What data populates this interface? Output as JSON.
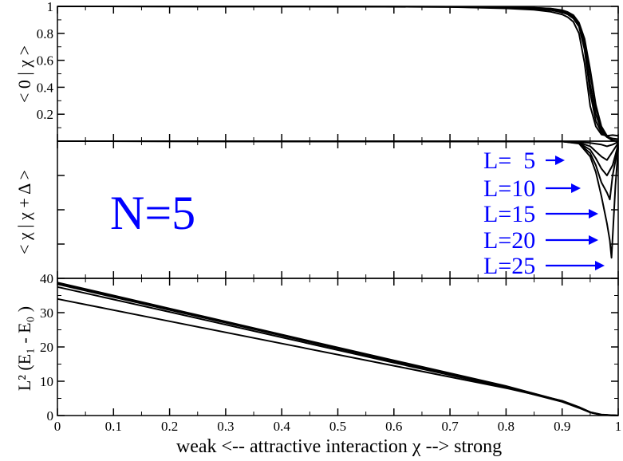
{
  "chart_data": [
    {
      "type": "line",
      "panel": "top",
      "ylabel": "< 0 | χ >",
      "xlim": [
        0,
        1
      ],
      "ylim": [
        0,
        1
      ],
      "yticks": [
        0.2,
        0.4,
        0.6,
        0.8,
        1
      ],
      "ytick_labels": [
        "0.2",
        "0.4",
        "0.6",
        "0.8",
        "1"
      ],
      "series": [
        {
          "x": [
            0,
            0.5,
            0.7,
            0.8,
            0.85,
            0.88,
            0.9,
            0.91,
            0.92,
            0.93,
            0.94,
            0.95,
            0.96,
            0.97,
            0.98,
            0.99,
            1.0
          ],
          "y": [
            1.0,
            0.999,
            0.997,
            0.993,
            0.988,
            0.98,
            0.965,
            0.95,
            0.92,
            0.86,
            0.7,
            0.42,
            0.2,
            0.08,
            0.03,
            0.005,
            0.0
          ]
        },
        {
          "x": [
            0,
            0.5,
            0.7,
            0.8,
            0.85,
            0.88,
            0.9,
            0.91,
            0.92,
            0.93,
            0.94,
            0.95,
            0.96,
            0.97,
            0.98,
            0.99,
            1.0
          ],
          "y": [
            1.0,
            0.999,
            0.997,
            0.994,
            0.99,
            0.983,
            0.97,
            0.955,
            0.93,
            0.87,
            0.74,
            0.5,
            0.25,
            0.1,
            0.035,
            0.006,
            0.0
          ]
        },
        {
          "x": [
            0,
            0.5,
            0.7,
            0.8,
            0.85,
            0.88,
            0.9,
            0.91,
            0.92,
            0.93,
            0.94,
            0.95,
            0.96,
            0.97,
            0.98,
            0.99,
            1.0
          ],
          "y": [
            1.0,
            0.999,
            0.997,
            0.994,
            0.99,
            0.984,
            0.972,
            0.958,
            0.935,
            0.88,
            0.76,
            0.53,
            0.27,
            0.11,
            0.04,
            0.007,
            0.0
          ]
        },
        {
          "x": [
            0,
            0.5,
            0.7,
            0.8,
            0.85,
            0.88,
            0.9,
            0.91,
            0.92,
            0.93,
            0.94,
            0.95,
            0.96,
            0.97,
            0.98,
            0.99,
            1.0
          ],
          "y": [
            1.0,
            0.999,
            0.996,
            0.99,
            0.983,
            0.972,
            0.955,
            0.94,
            0.91,
            0.85,
            0.68,
            0.36,
            0.15,
            0.065,
            0.03,
            0.02,
            0.015
          ]
        },
        {
          "x": [
            0,
            0.5,
            0.7,
            0.8,
            0.85,
            0.88,
            0.9,
            0.91,
            0.92,
            0.93,
            0.94,
            0.95,
            0.96,
            0.97,
            0.98,
            0.99,
            1.0
          ],
          "y": [
            1.0,
            0.999,
            0.995,
            0.985,
            0.975,
            0.96,
            0.94,
            0.92,
            0.885,
            0.8,
            0.58,
            0.26,
            0.11,
            0.05,
            0.04,
            0.045,
            0.04
          ]
        }
      ]
    },
    {
      "type": "line",
      "panel": "middle",
      "ylabel": "< χ | χ + Δ >",
      "xlim": [
        0,
        1
      ],
      "ylim": [
        0.6,
        1
      ],
      "series": [
        {
          "name": "L= 5",
          "x": [
            0,
            0.9,
            0.93,
            0.95,
            0.97,
            0.98,
            0.99,
            1.0
          ],
          "y": [
            1.0,
            0.999,
            0.998,
            0.995,
            0.99,
            0.985,
            0.99,
            0.998
          ]
        },
        {
          "name": "L=10",
          "x": [
            0,
            0.9,
            0.93,
            0.95,
            0.96,
            0.97,
            0.98,
            0.99,
            1.0
          ],
          "y": [
            1.0,
            0.999,
            0.996,
            0.985,
            0.97,
            0.955,
            0.945,
            0.97,
            0.995
          ]
        },
        {
          "name": "L=15",
          "x": [
            0,
            0.9,
            0.93,
            0.95,
            0.96,
            0.97,
            0.98,
            0.99,
            1.0
          ],
          "y": [
            1.0,
            0.999,
            0.995,
            0.975,
            0.95,
            0.92,
            0.9,
            0.93,
            0.99
          ]
        },
        {
          "name": "L=20",
          "x": [
            0,
            0.9,
            0.93,
            0.95,
            0.96,
            0.97,
            0.98,
            0.985,
            0.99,
            1.0
          ],
          "y": [
            1.0,
            0.999,
            0.994,
            0.965,
            0.93,
            0.88,
            0.85,
            0.83,
            0.9,
            0.985
          ]
        },
        {
          "name": "L=25",
          "x": [
            0,
            0.9,
            0.93,
            0.95,
            0.96,
            0.97,
            0.975,
            0.98,
            0.985,
            0.988,
            0.99,
            0.995,
            1.0
          ],
          "y": [
            1.0,
            0.999,
            0.993,
            0.955,
            0.91,
            0.84,
            0.8,
            0.76,
            0.71,
            0.66,
            0.72,
            0.87,
            0.98
          ]
        }
      ],
      "labels": [
        "L=  5",
        "L=10",
        "L=15",
        "L=20",
        "L=25"
      ],
      "annotation": "N=5"
    },
    {
      "type": "line",
      "panel": "bottom",
      "ylabel": "L² (E₁ - E₀ )",
      "xlabel": "weak  <--  attractive interaction χ  -->  strong",
      "xlim": [
        0,
        1
      ],
      "ylim": [
        0,
        40
      ],
      "yticks": [
        0,
        10,
        20,
        30,
        40
      ],
      "ytick_labels": [
        "0",
        "10",
        "20",
        "30",
        "40"
      ],
      "xticks": [
        0,
        0.1,
        0.2,
        0.3,
        0.4,
        0.5,
        0.6,
        0.7,
        0.8,
        0.9,
        1
      ],
      "xtick_labels": [
        "0",
        "0.1",
        "0.2",
        "0.3",
        "0.4",
        "0.5",
        "0.6",
        "0.7",
        "0.8",
        "0.9",
        "1"
      ],
      "series": [
        {
          "x": [
            0,
            0.2,
            0.4,
            0.6,
            0.8,
            0.9,
            0.93,
            0.95,
            0.97,
            1.0
          ],
          "y": [
            34.0,
            27.5,
            21.0,
            14.5,
            8.0,
            4.3,
            2.5,
            1.0,
            0.3,
            0.0
          ]
        },
        {
          "x": [
            0,
            0.2,
            0.4,
            0.6,
            0.8,
            0.9,
            0.93,
            0.95,
            0.97,
            1.0
          ],
          "y": [
            37.5,
            30.2,
            22.8,
            15.4,
            8.2,
            4.0,
            2.2,
            0.9,
            0.2,
            0.0
          ]
        },
        {
          "x": [
            0,
            0.2,
            0.4,
            0.6,
            0.8,
            0.9,
            0.93,
            0.95,
            0.97,
            1.0
          ],
          "y": [
            38.3,
            30.8,
            23.3,
            15.8,
            8.4,
            4.1,
            2.3,
            0.9,
            0.2,
            0.0
          ]
        },
        {
          "x": [
            0,
            0.2,
            0.4,
            0.6,
            0.8,
            0.9,
            0.93,
            0.95,
            0.97,
            1.0
          ],
          "y": [
            38.6,
            31.0,
            23.5,
            16.0,
            8.5,
            4.2,
            2.3,
            0.9,
            0.2,
            0.0
          ]
        },
        {
          "x": [
            0,
            0.2,
            0.4,
            0.6,
            0.8,
            0.9,
            0.93,
            0.95,
            0.97,
            1.0
          ],
          "y": [
            38.8,
            31.2,
            23.6,
            16.1,
            8.6,
            4.2,
            2.4,
            1.0,
            0.2,
            0.0
          ]
        }
      ]
    }
  ]
}
